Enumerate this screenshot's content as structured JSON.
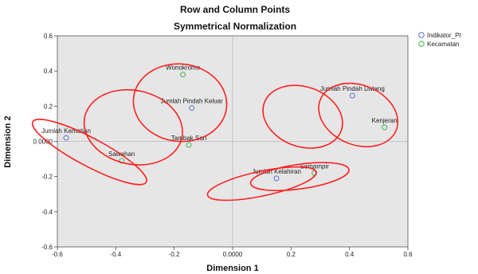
{
  "chart_data": {
    "type": "scatter",
    "title": "Row and Column Points",
    "subtitle": "Symmetrical Normalization",
    "xlabel": "Dimension 1",
    "ylabel": "Dimension 2",
    "xlim": [
      -0.6,
      0.6
    ],
    "ylim": [
      -0.6,
      0.6
    ],
    "x_ticks": [
      "-0.6",
      "-0.4",
      "-0.2",
      "0.0000",
      "0.2",
      "0.4",
      "0.6"
    ],
    "y_ticks": [
      "0.6",
      "0.4",
      "0.2",
      "0.0000",
      "-0.2",
      "-0.4",
      "-0.6"
    ],
    "grid": false,
    "legend_position": "top-right",
    "colors": {
      "plot_bg": "#e6e6e6",
      "indikator": "#5a6fd6",
      "kecamatan": "#3cb34a",
      "ellipse": "#ff2020"
    },
    "series": [
      {
        "name": "Indikator_Pl",
        "color_key": "indikator",
        "points": [
          {
            "label": "Jumlah Kematian",
            "x": -0.57,
            "y": 0.02
          },
          {
            "label": "Jumlah Pindah Keluar",
            "x": -0.14,
            "y": 0.19
          },
          {
            "label": "Jumlah Pindah Datang",
            "x": 0.41,
            "y": 0.26
          },
          {
            "label": "Jumlah Kelahiran",
            "x": 0.15,
            "y": -0.21
          }
        ]
      },
      {
        "name": "Kecamatan",
        "color_key": "kecamatan",
        "points": [
          {
            "label": "Wonokromo",
            "x": -0.17,
            "y": 0.38
          },
          {
            "label": "Sawahan",
            "x": -0.38,
            "y": -0.11
          },
          {
            "label": "Tambak Sari",
            "x": -0.15,
            "y": -0.02
          },
          {
            "label": "Kenjeran",
            "x": 0.52,
            "y": 0.08
          },
          {
            "label": "Semampir",
            "x": 0.28,
            "y": -0.18
          }
        ]
      }
    ],
    "annotations": {
      "ellipses": [
        {
          "cx": -0.49,
          "cy": -0.06,
          "rx": 0.22,
          "ry": 0.08,
          "angle": 28
        },
        {
          "cx": -0.34,
          "cy": 0.08,
          "rx": 0.17,
          "ry": 0.21,
          "angle": 12
        },
        {
          "cx": -0.18,
          "cy": 0.22,
          "rx": 0.16,
          "ry": 0.22,
          "angle": 6
        },
        {
          "cx": 0.24,
          "cy": 0.14,
          "rx": 0.14,
          "ry": 0.17,
          "angle": 20
        },
        {
          "cx": 0.43,
          "cy": 0.15,
          "rx": 0.14,
          "ry": 0.17,
          "angle": 22
        },
        {
          "cx": 0.1,
          "cy": -0.24,
          "rx": 0.19,
          "ry": 0.07,
          "angle": -12
        },
        {
          "cx": 0.23,
          "cy": -0.2,
          "rx": 0.17,
          "ry": 0.07,
          "angle": -8
        }
      ]
    }
  }
}
